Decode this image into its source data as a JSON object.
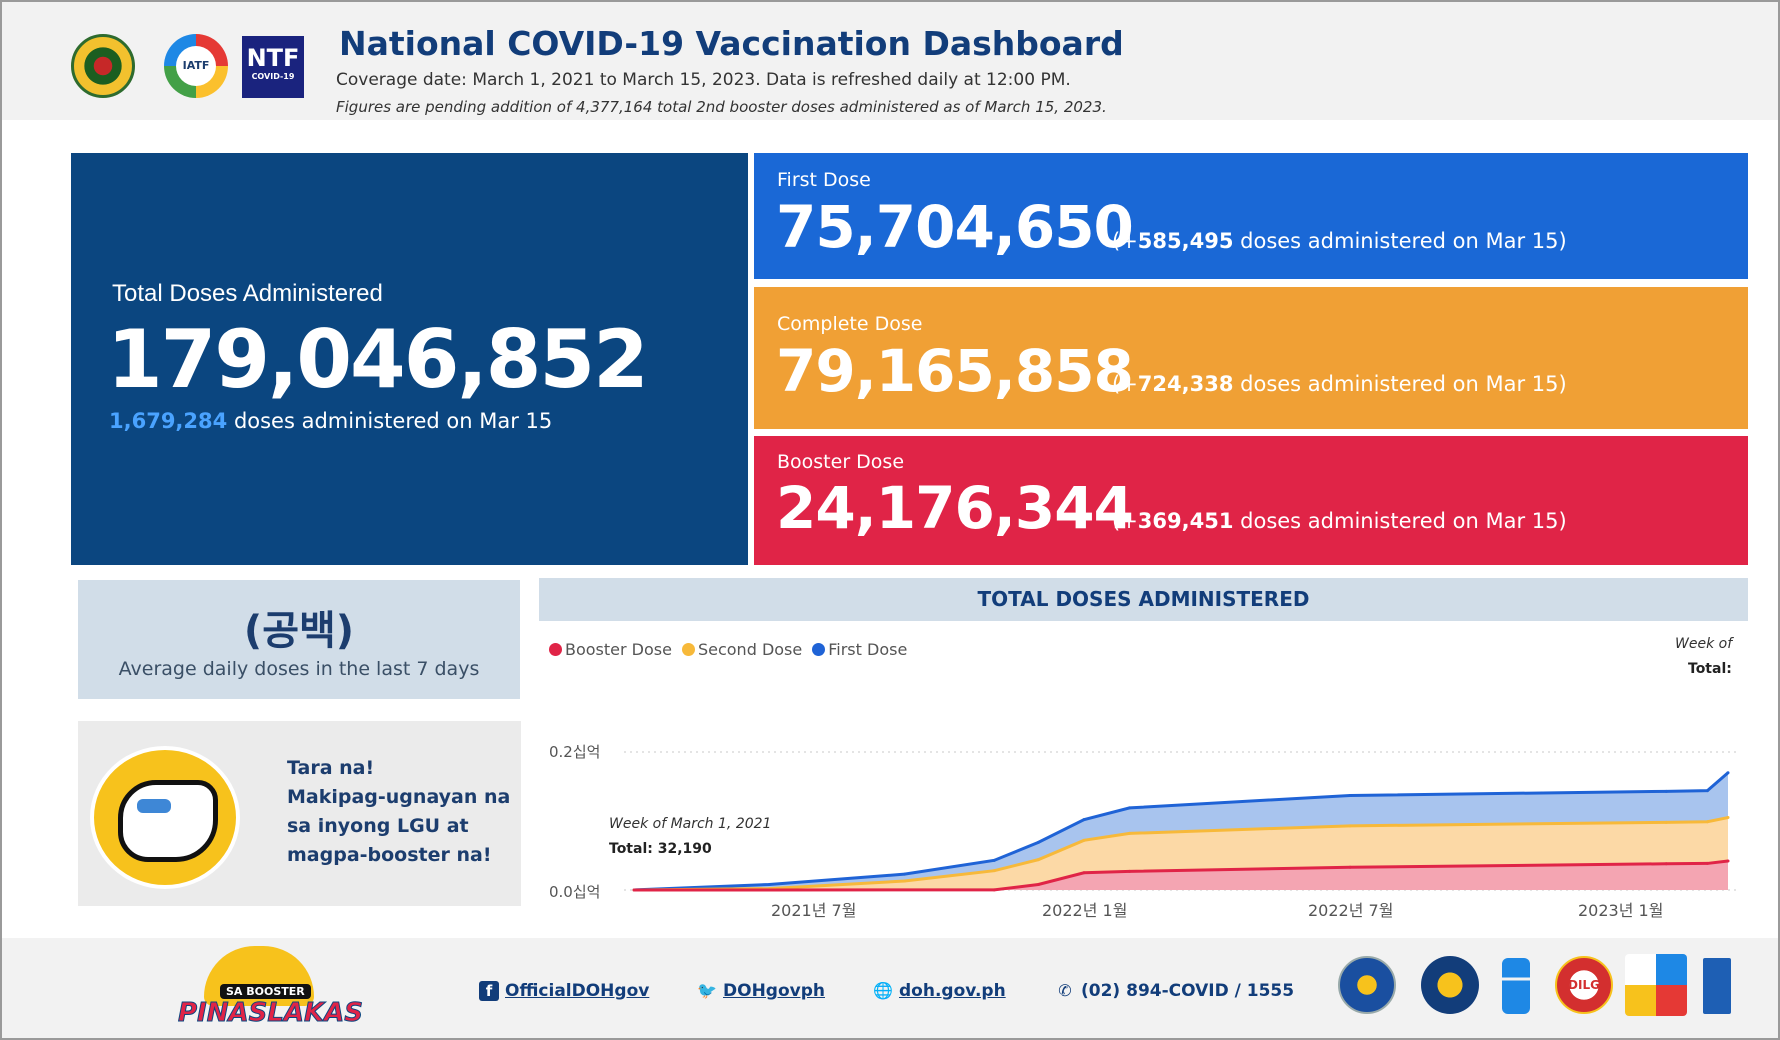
{
  "header": {
    "title": "National COVID-19 Vaccination Dashboard",
    "coverage": "Coverage date: March 1, 2021 to March 15, 2023. Data is refreshed daily at 12:00 PM.",
    "note": "Figures are pending addition of 4,377,164 total 2nd booster doses administered as of March 15, 2023.",
    "logos": {
      "iatf": "IATF",
      "ntf": "NTF",
      "ntf_sub": "COVID-19"
    }
  },
  "total": {
    "label": "Total Doses Administered",
    "value": "179,046,852",
    "daily_value": "1,679,284",
    "daily_text": "doses administered on Mar 15"
  },
  "doses": {
    "first": {
      "label": "First Dose",
      "value": "75,704,650",
      "open": "(+",
      "daily": "585,495",
      "close": "doses administered on Mar 15)",
      "color": "#1a68d6"
    },
    "complete": {
      "label": "Complete Dose",
      "value": "79,165,858",
      "open": "(+",
      "daily": "724,338",
      "close": "doses administered on Mar 15)",
      "color": "#f0a035"
    },
    "booster": {
      "label": "Booster Dose",
      "value": "24,176,344",
      "open": "(+",
      "daily": "369,451",
      "close": "doses administered on Mar 15)",
      "color": "#e02447"
    }
  },
  "average": {
    "value": "(공백)",
    "label": "Average daily doses in the last 7 days"
  },
  "promo": {
    "line1": "Tara na!",
    "line2": "Makipag-ugnayan na",
    "line3": "sa inyong LGU at",
    "line4": "magpa-booster na!"
  },
  "chart": {
    "header": "TOTAL DOSES ADMINISTERED",
    "week_of_right": "Week of",
    "total_right": "Total:",
    "tooltip_week": "Week of March 1, 2021",
    "tooltip_total": "Total: 32,190"
  },
  "chart_data": {
    "type": "area",
    "title": "TOTAL DOSES ADMINISTERED",
    "y_tick_labels": [
      "0.2십억",
      "0.0십억"
    ],
    "x_tick_labels": [
      "2021년 7월",
      "2022년 1월",
      "2022년 7월",
      "2023년 1월"
    ],
    "ylim": [
      0,
      200000000
    ],
    "x_range": [
      "2021-03-01",
      "2023-03-15"
    ],
    "stacked": true,
    "grid": "dotted horizontal",
    "legend_position": "top-left",
    "series": [
      {
        "name": "Booster Dose",
        "color": "#e02447",
        "x": [
          "2021-03-01",
          "2021-11-01",
          "2021-12-01",
          "2022-01-01",
          "2022-02-01",
          "2022-07-01",
          "2023-02-01",
          "2023-03-01",
          "2023-03-15"
        ],
        "values": [
          0,
          200000,
          8000000,
          25000000,
          27000000,
          33000000,
          38000000,
          38500000,
          42000000
        ]
      },
      {
        "name": "Second Dose",
        "color": "#f7b93a",
        "x": [
          "2021-03-01",
          "2021-06-01",
          "2021-09-01",
          "2021-11-01",
          "2021-12-01",
          "2022-01-01",
          "2022-02-01",
          "2022-07-01",
          "2023-02-01",
          "2023-03-01",
          "2023-03-15"
        ],
        "values": [
          30000,
          2000000,
          13000000,
          28000000,
          44000000,
          72000000,
          82000000,
          93000000,
          98000000,
          99000000,
          105000000
        ]
      },
      {
        "name": "First Dose",
        "color": "#1f63d6",
        "x": [
          "2021-03-01",
          "2021-06-01",
          "2021-09-01",
          "2021-11-01",
          "2021-12-01",
          "2022-01-01",
          "2022-02-01",
          "2022-07-01",
          "2023-02-01",
          "2023-03-01",
          "2023-03-15"
        ],
        "values": [
          32190,
          8000000,
          23000000,
          43000000,
          69000000,
          102000000,
          119000000,
          137000000,
          143000000,
          144000000,
          170000000
        ]
      }
    ]
  },
  "footer": {
    "brand_sub": "SA BOOSTER",
    "brand_main": "PINASLAKAS",
    "facebook": "OfficialDOHgov",
    "twitter": "DOHgovph",
    "website": "doh.gov.ph",
    "phone": "(02) 894-COVID / 1555",
    "dilg": "DILG",
    "icons": [
      "facebook-icon",
      "twitter-icon",
      "globe-icon",
      "phone-icon"
    ]
  }
}
